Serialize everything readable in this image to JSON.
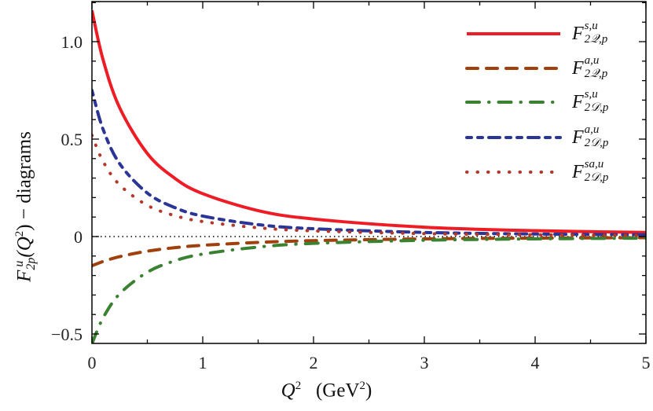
{
  "chart_data": {
    "type": "line",
    "xlabel": {
      "main": "Q",
      "main_sup": "2",
      "unit_pre": "(GeV",
      "unit_sup": "2",
      "unit_post": ")"
    },
    "ylabel": {
      "main": "F",
      "sup": "u",
      "sub": "2p",
      "arg": "(Q",
      "arg_sup": "2",
      "arg_post": ") − diagrams"
    },
    "xlim": [
      0,
      5
    ],
    "ylim": [
      -0.55,
      1.2
    ],
    "x_ticks": [
      "0",
      "1",
      "2",
      "3",
      "4",
      "5"
    ],
    "y_ticks": [
      "−0.5",
      "0",
      "0.5",
      "1.0"
    ],
    "y_tick_values": [
      -0.5,
      0,
      0.5,
      1.0
    ],
    "zero_line": "dotted",
    "grid": false,
    "legend_position": "top-right",
    "x": [
      0,
      0.1,
      0.25,
      0.5,
      0.75,
      1,
      1.5,
      2,
      3,
      4,
      5
    ],
    "series": [
      {
        "name": {
          "sup": "s,u",
          "sub": "2𝒬,p"
        },
        "color": "#ee1c25",
        "style": "solid",
        "values": [
          1.16,
          0.908,
          0.661,
          0.426,
          0.298,
          0.22,
          0.133,
          0.09,
          0.048,
          0.03,
          0.021
        ]
      },
      {
        "name": {
          "sup": "a,u",
          "sub": "2𝒬,p"
        },
        "color": "#a0410d",
        "style": "dashed",
        "values": [
          -0.15,
          -0.128,
          -0.103,
          -0.075,
          -0.057,
          -0.045,
          -0.03,
          -0.021,
          -0.012,
          -0.008,
          -0.006
        ]
      },
      {
        "name": {
          "sup": "s,u",
          "sub": "2𝒟,p"
        },
        "color": "#3b8132",
        "style": "dash-dot",
        "values": [
          -0.55,
          -0.418,
          -0.294,
          -0.183,
          -0.124,
          -0.09,
          -0.054,
          -0.035,
          -0.019,
          -0.012,
          -0.008
        ]
      },
      {
        "name": {
          "sup": "a,u",
          "sub": "2𝒟,p"
        },
        "color": "#2b3595",
        "style": "dash-dot-dot",
        "values": [
          0.75,
          0.551,
          0.374,
          0.223,
          0.148,
          0.105,
          0.061,
          0.04,
          0.021,
          0.013,
          0.009
        ]
      },
      {
        "name": {
          "sup": "sa,u",
          "sub": "2𝒟,p"
        },
        "color": "#b5372a",
        "style": "dotted",
        "values": [
          0.52,
          0.386,
          0.265,
          0.16,
          0.107,
          0.077,
          0.045,
          0.029,
          0.015,
          0.009,
          0.006
        ]
      }
    ]
  }
}
